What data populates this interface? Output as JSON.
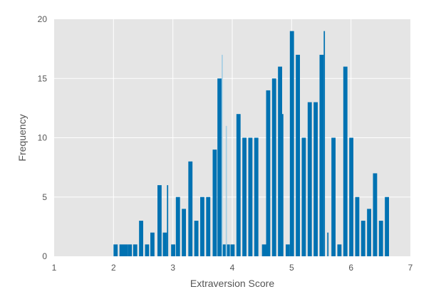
{
  "chart_data": {
    "type": "bar",
    "title": "",
    "xlabel": "Extraversion Score",
    "ylabel": "Frequency",
    "xlim": [
      1,
      7
    ],
    "ylim": [
      0,
      20
    ],
    "xticks": [
      1,
      2,
      3,
      4,
      5,
      6,
      7
    ],
    "yticks": [
      0,
      5,
      10,
      15,
      20
    ],
    "grid": true,
    "legend": "none",
    "bar_color": "#0072b2",
    "light_bar_color": "#a8cfe3",
    "background_color": "#e5e5e5",
    "grid_color": "#ffffff",
    "bin_width": 0.07,
    "bars": [
      {
        "x": 2.0,
        "y": 1
      },
      {
        "x": 2.1,
        "y": 1
      },
      {
        "x": 2.17,
        "y": 1
      },
      {
        "x": 2.24,
        "y": 1
      },
      {
        "x": 2.33,
        "y": 1
      },
      {
        "x": 2.43,
        "y": 3
      },
      {
        "x": 2.53,
        "y": 1
      },
      {
        "x": 2.62,
        "y": 2
      },
      {
        "x": 2.74,
        "y": 6
      },
      {
        "x": 2.83,
        "y": 2
      },
      {
        "x": 2.9,
        "y": 6,
        "thin": true
      },
      {
        "x": 2.97,
        "y": 1
      },
      {
        "x": 3.05,
        "y": 5
      },
      {
        "x": 3.15,
        "y": 4
      },
      {
        "x": 3.26,
        "y": 8
      },
      {
        "x": 3.36,
        "y": 3
      },
      {
        "x": 3.46,
        "y": 5
      },
      {
        "x": 3.56,
        "y": 5
      },
      {
        "x": 3.67,
        "y": 9
      },
      {
        "x": 3.75,
        "y": 15
      },
      {
        "x": 3.82,
        "y": 1
      },
      {
        "x": 3.82,
        "y": 17,
        "light": true,
        "thin": true
      },
      {
        "x": 3.89,
        "y": 1
      },
      {
        "x": 3.89,
        "y": 11,
        "light": true,
        "thin": true
      },
      {
        "x": 3.97,
        "y": 1
      },
      {
        "x": 4.07,
        "y": 12
      },
      {
        "x": 4.17,
        "y": 10
      },
      {
        "x": 4.27,
        "y": 10
      },
      {
        "x": 4.37,
        "y": 10
      },
      {
        "x": 4.5,
        "y": 1
      },
      {
        "x": 4.57,
        "y": 14
      },
      {
        "x": 4.67,
        "y": 15
      },
      {
        "x": 4.77,
        "y": 16
      },
      {
        "x": 4.84,
        "y": 12,
        "thin": true
      },
      {
        "x": 4.9,
        "y": 1
      },
      {
        "x": 4.97,
        "y": 19
      },
      {
        "x": 5.07,
        "y": 17
      },
      {
        "x": 5.17,
        "y": 10
      },
      {
        "x": 5.27,
        "y": 13
      },
      {
        "x": 5.37,
        "y": 13
      },
      {
        "x": 5.47,
        "y": 17
      },
      {
        "x": 5.54,
        "y": 19,
        "thin": true
      },
      {
        "x": 5.6,
        "y": 2,
        "thin": true
      },
      {
        "x": 5.67,
        "y": 10
      },
      {
        "x": 5.77,
        "y": 1
      },
      {
        "x": 5.87,
        "y": 16
      },
      {
        "x": 5.97,
        "y": 10
      },
      {
        "x": 6.07,
        "y": 5
      },
      {
        "x": 6.17,
        "y": 3
      },
      {
        "x": 6.27,
        "y": 4
      },
      {
        "x": 6.37,
        "y": 7
      },
      {
        "x": 6.47,
        "y": 3
      },
      {
        "x": 6.57,
        "y": 5
      }
    ]
  }
}
